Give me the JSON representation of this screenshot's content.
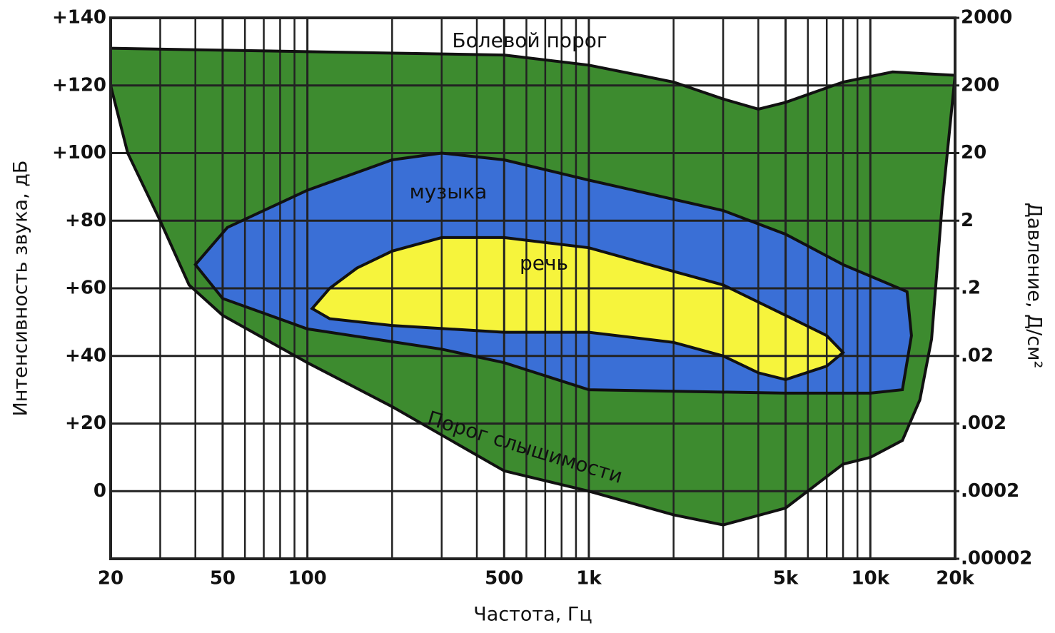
{
  "chart_data": {
    "type": "area",
    "x_label": "Частота, Гц",
    "y_label": "Интенсивность звука, дБ",
    "y2_label": "Давление, Д/см²",
    "xscale": "log",
    "xlim": [
      20,
      20000
    ],
    "xticks": [
      20,
      50,
      100,
      500,
      {
        "value": 1000,
        "label": "1k"
      },
      {
        "value": 5000,
        "label": "5k"
      },
      {
        "value": 10000,
        "label": "10k"
      },
      {
        "value": 20000,
        "label": "20k"
      }
    ],
    "xminor": [
      30,
      40,
      60,
      70,
      80,
      90,
      200,
      300,
      400,
      600,
      700,
      800,
      900,
      2000,
      3000,
      4000,
      6000,
      7000,
      8000,
      9000
    ],
    "ylim": [
      -20,
      140
    ],
    "yticks": [
      0,
      {
        "value": 20,
        "label": "+20"
      },
      {
        "value": 40,
        "label": "+40"
      },
      {
        "value": 60,
        "label": "+60"
      },
      {
        "value": 80,
        "label": "+80"
      },
      {
        "value": 100,
        "label": "+100"
      },
      {
        "value": 120,
        "label": "+120"
      },
      {
        "value": 140,
        "label": "+140"
      }
    ],
    "y2scale": "log",
    "y2lim": [
      2e-05,
      2000
    ],
    "y2ticks": [
      {
        "value": 2e-05,
        "label": ".00002"
      },
      {
        "value": 0.0002,
        "label": ".0002"
      },
      {
        "value": 0.002,
        "label": ".002"
      },
      {
        "value": 0.02,
        "label": ".02"
      },
      {
        "value": 0.2,
        "label": ".2"
      },
      2,
      20,
      200,
      2000
    ],
    "grid": true,
    "band_color": "#3d8b2f",
    "series": [
      {
        "name": "Болевой порог",
        "x": [
          20,
          100,
          500,
          1000,
          2000,
          3000,
          4000,
          5000,
          8000,
          12000,
          20000
        ],
        "values": [
          131,
          130,
          129,
          126,
          121,
          116,
          113,
          115,
          121,
          124,
          123
        ]
      },
      {
        "name": "Порог слышимости",
        "x": [
          20,
          23,
          30,
          38,
          50,
          100,
          200,
          500,
          1000,
          2000,
          3000,
          5000,
          8000,
          10000,
          13000,
          15000,
          16500,
          18000,
          20000
        ],
        "values": [
          120,
          100,
          80,
          61,
          52,
          38,
          25,
          6,
          0,
          -7,
          -10,
          -5,
          8,
          10,
          15,
          27,
          45,
          85,
          123
        ]
      },
      {
        "name": "музыка",
        "color": "#3a6fd6",
        "x": [
          40,
          52,
          100,
          200,
          300,
          500,
          1000,
          3000,
          5000,
          8000,
          13500,
          14000,
          13000,
          10000,
          5000,
          1000,
          500,
          300,
          100,
          50
        ],
        "values": [
          67,
          78,
          89,
          98,
          100,
          98,
          92,
          83,
          76,
          67,
          59,
          46,
          30,
          29,
          29,
          30,
          38,
          42,
          48,
          57
        ]
      },
      {
        "name": "речь",
        "color": "#f6f43c",
        "x": [
          104,
          120,
          150,
          200,
          300,
          500,
          1000,
          2000,
          3000,
          5000,
          7000,
          8000,
          7000,
          5000,
          4000,
          3000,
          2000,
          1000,
          500,
          200,
          120
        ],
        "values": [
          54,
          60,
          66,
          71,
          75,
          75,
          72,
          65,
          61,
          52,
          46,
          41,
          37,
          33,
          35,
          40,
          44,
          47,
          47,
          49,
          51
        ]
      }
    ]
  }
}
